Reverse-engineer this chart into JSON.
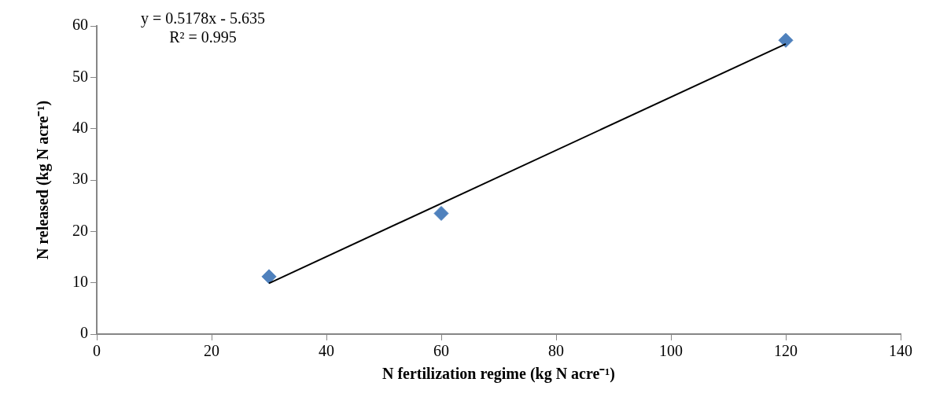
{
  "chart_data": {
    "type": "scatter",
    "xlabel": "N fertilization regime (kg N acre⁻¹)",
    "ylabel": "N released (kg N acre⁻¹)",
    "series": [
      {
        "color": "#4f81bd",
        "marker": "diamond",
        "x": [
          30,
          60,
          120
        ],
        "values": [
          11.2,
          23.5,
          57.2
        ]
      },
      {
        "type": "line",
        "color": "#000000",
        "marker": "none",
        "line_style": "solid",
        "x": [
          30,
          120
        ],
        "values": [
          9.9,
          56.5
        ]
      }
    ],
    "xlim": [
      0,
      140
    ],
    "xticks": [
      0,
      20,
      40,
      60,
      80,
      100,
      120,
      140
    ],
    "ylim": [
      0,
      60
    ],
    "yticks": [
      0,
      10,
      20,
      30,
      40,
      50,
      60
    ],
    "grid": false,
    "legend": false,
    "annotations": [
      "y = 0.5178x - 5.635",
      "R² = 0.995"
    ]
  }
}
